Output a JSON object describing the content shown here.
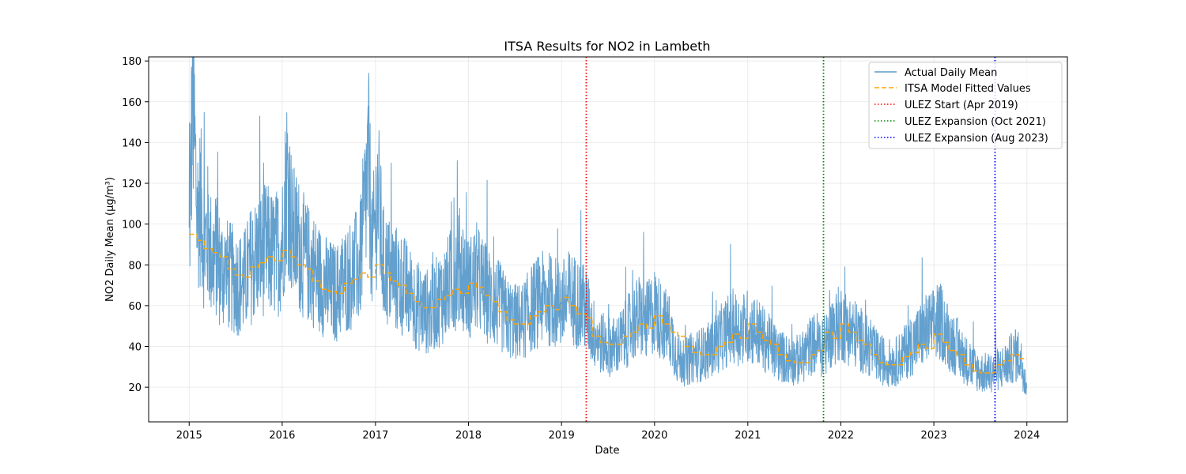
{
  "chart_data": {
    "type": "line",
    "title": "ITSA Results for NO2 in Lambeth",
    "xlabel": "Date",
    "ylabel": "NO2 Daily Mean (µg/m³)",
    "x_range": [
      "2014-07-26",
      "2024-06-08"
    ],
    "ylim": [
      3,
      182
    ],
    "x_ticks": [
      "2015",
      "2016",
      "2017",
      "2018",
      "2019",
      "2020",
      "2021",
      "2022",
      "2023",
      "2024"
    ],
    "y_ticks": [
      20,
      40,
      60,
      80,
      100,
      120,
      140,
      160,
      180
    ],
    "grid": true,
    "legend_position": "top-right",
    "series": [
      {
        "name": "Actual Daily Mean",
        "kind": "actual",
        "color": "#5b9bcb",
        "points": [
          [
            "2015-01-01",
            88
          ],
          [
            "2015-01-08",
            128
          ],
          [
            "2015-01-15",
            165
          ],
          [
            "2015-01-22",
            140
          ],
          [
            "2015-02-01",
            105
          ],
          [
            "2015-02-15",
            110
          ],
          [
            "2015-03-01",
            90
          ],
          [
            "2015-03-15",
            95
          ],
          [
            "2015-04-01",
            82
          ],
          [
            "2015-04-15",
            85
          ],
          [
            "2015-05-01",
            78
          ],
          [
            "2015-06-01",
            75
          ],
          [
            "2015-07-01",
            72
          ],
          [
            "2015-08-01",
            70
          ],
          [
            "2015-09-01",
            80
          ],
          [
            "2015-10-01",
            85
          ],
          [
            "2015-11-01",
            88
          ],
          [
            "2015-12-01",
            84
          ],
          [
            "2016-01-01",
            90
          ],
          [
            "2016-01-20",
            125
          ],
          [
            "2016-02-10",
            95
          ],
          [
            "2016-03-01",
            92
          ],
          [
            "2016-04-01",
            82
          ],
          [
            "2016-05-01",
            78
          ],
          [
            "2016-06-01",
            72
          ],
          [
            "2016-07-01",
            68
          ],
          [
            "2016-08-01",
            66
          ],
          [
            "2016-09-01",
            72
          ],
          [
            "2016-10-01",
            76
          ],
          [
            "2016-11-01",
            80
          ],
          [
            "2016-12-05",
            130
          ],
          [
            "2016-12-20",
            85
          ],
          [
            "2017-01-10",
            115
          ],
          [
            "2017-02-01",
            80
          ],
          [
            "2017-03-01",
            75
          ],
          [
            "2017-04-01",
            72
          ],
          [
            "2017-05-01",
            68
          ],
          [
            "2017-06-01",
            62
          ],
          [
            "2017-07-01",
            58
          ],
          [
            "2017-08-01",
            57
          ],
          [
            "2017-09-01",
            62
          ],
          [
            "2017-10-01",
            66
          ],
          [
            "2017-11-01",
            74
          ],
          [
            "2017-12-01",
            80
          ],
          [
            "2018-01-01",
            68
          ],
          [
            "2018-02-01",
            74
          ],
          [
            "2018-03-01",
            68
          ],
          [
            "2018-04-01",
            63
          ],
          [
            "2018-05-01",
            60
          ],
          [
            "2018-06-01",
            54
          ],
          [
            "2018-07-01",
            52
          ],
          [
            "2018-08-01",
            52
          ],
          [
            "2018-09-01",
            58
          ],
          [
            "2018-10-01",
            62
          ],
          [
            "2018-11-01",
            64
          ],
          [
            "2018-12-01",
            62
          ],
          [
            "2019-01-01",
            60
          ],
          [
            "2019-02-01",
            64
          ],
          [
            "2019-03-01",
            62
          ],
          [
            "2019-04-08",
            58
          ],
          [
            "2019-05-01",
            48
          ],
          [
            "2019-06-01",
            42
          ],
          [
            "2019-07-01",
            40
          ],
          [
            "2019-08-01",
            40
          ],
          [
            "2019-09-01",
            44
          ],
          [
            "2019-10-01",
            50
          ],
          [
            "2019-11-01",
            55
          ],
          [
            "2019-12-01",
            52
          ],
          [
            "2020-01-01",
            58
          ],
          [
            "2020-02-01",
            52
          ],
          [
            "2020-03-01",
            48
          ],
          [
            "2020-04-01",
            34
          ],
          [
            "2020-05-01",
            32
          ],
          [
            "2020-06-01",
            35
          ],
          [
            "2020-07-01",
            36
          ],
          [
            "2020-08-01",
            38
          ],
          [
            "2020-09-01",
            42
          ],
          [
            "2020-10-01",
            46
          ],
          [
            "2020-11-01",
            50
          ],
          [
            "2020-12-01",
            48
          ],
          [
            "2021-01-01",
            50
          ],
          [
            "2021-02-01",
            48
          ],
          [
            "2021-03-01",
            44
          ],
          [
            "2021-04-01",
            40
          ],
          [
            "2021-05-01",
            36
          ],
          [
            "2021-06-01",
            34
          ],
          [
            "2021-07-01",
            33
          ],
          [
            "2021-08-01",
            34
          ],
          [
            "2021-09-01",
            40
          ],
          [
            "2021-10-01",
            42
          ],
          [
            "2021-10-25",
            38
          ],
          [
            "2021-12-01",
            48
          ],
          [
            "2022-01-01",
            52
          ],
          [
            "2022-02-01",
            48
          ],
          [
            "2022-03-01",
            46
          ],
          [
            "2022-04-01",
            42
          ],
          [
            "2022-05-01",
            38
          ],
          [
            "2022-06-01",
            34
          ],
          [
            "2022-07-01",
            32
          ],
          [
            "2022-08-01",
            32
          ],
          [
            "2022-09-01",
            36
          ],
          [
            "2022-10-01",
            40
          ],
          [
            "2022-11-01",
            44
          ],
          [
            "2022-12-01",
            48
          ],
          [
            "2023-01-01",
            50
          ],
          [
            "2023-02-01",
            52
          ],
          [
            "2023-03-01",
            44
          ],
          [
            "2023-04-01",
            40
          ],
          [
            "2023-05-01",
            34
          ],
          [
            "2023-06-01",
            30
          ],
          [
            "2023-07-01",
            27
          ],
          [
            "2023-08-01",
            27
          ],
          [
            "2023-08-29",
            28
          ],
          [
            "2023-10-01",
            30
          ],
          [
            "2023-11-01",
            34
          ],
          [
            "2023-12-01",
            36
          ],
          [
            "2023-12-31",
            22
          ]
        ]
      },
      {
        "name": "ITSA Model Fitted Values",
        "kind": "fitted",
        "color": "#ffa500",
        "points": [
          [
            "2015-01-01",
            95
          ],
          [
            "2015-02-01",
            92
          ],
          [
            "2015-03-01",
            88
          ],
          [
            "2015-04-01",
            86
          ],
          [
            "2015-05-01",
            84
          ],
          [
            "2015-06-01",
            78
          ],
          [
            "2015-07-01",
            75
          ],
          [
            "2015-08-01",
            74
          ],
          [
            "2015-09-01",
            79
          ],
          [
            "2015-10-01",
            81
          ],
          [
            "2015-11-01",
            84
          ],
          [
            "2015-12-01",
            82
          ],
          [
            "2016-01-01",
            87
          ],
          [
            "2016-02-01",
            84
          ],
          [
            "2016-03-01",
            80
          ],
          [
            "2016-04-01",
            78
          ],
          [
            "2016-05-01",
            72
          ],
          [
            "2016-06-01",
            68
          ],
          [
            "2016-07-01",
            67
          ],
          [
            "2016-08-01",
            66
          ],
          [
            "2016-09-01",
            71
          ],
          [
            "2016-10-01",
            73
          ],
          [
            "2016-11-01",
            76
          ],
          [
            "2016-12-01",
            74
          ],
          [
            "2017-01-01",
            80
          ],
          [
            "2017-02-01",
            76
          ],
          [
            "2017-03-01",
            72
          ],
          [
            "2017-04-01",
            70
          ],
          [
            "2017-05-01",
            66
          ],
          [
            "2017-06-01",
            62
          ],
          [
            "2017-07-01",
            59
          ],
          [
            "2017-08-01",
            59
          ],
          [
            "2017-09-01",
            63
          ],
          [
            "2017-10-01",
            65
          ],
          [
            "2017-11-01",
            68
          ],
          [
            "2017-12-01",
            66
          ],
          [
            "2018-01-01",
            71
          ],
          [
            "2018-02-01",
            69
          ],
          [
            "2018-03-01",
            65
          ],
          [
            "2018-04-01",
            62
          ],
          [
            "2018-05-01",
            57
          ],
          [
            "2018-06-01",
            53
          ],
          [
            "2018-07-01",
            51
          ],
          [
            "2018-08-01",
            51
          ],
          [
            "2018-09-01",
            55
          ],
          [
            "2018-10-01",
            57
          ],
          [
            "2018-11-01",
            60
          ],
          [
            "2018-12-01",
            58
          ],
          [
            "2019-01-01",
            64
          ],
          [
            "2019-02-01",
            60
          ],
          [
            "2019-03-01",
            56
          ],
          [
            "2019-04-08",
            54
          ],
          [
            "2019-05-01",
            45
          ],
          [
            "2019-06-01",
            42
          ],
          [
            "2019-07-01",
            41
          ],
          [
            "2019-08-01",
            41
          ],
          [
            "2019-09-01",
            45
          ],
          [
            "2019-10-01",
            47
          ],
          [
            "2019-11-01",
            51
          ],
          [
            "2019-12-01",
            49
          ],
          [
            "2020-01-01",
            55
          ],
          [
            "2020-02-01",
            51
          ],
          [
            "2020-03-01",
            47
          ],
          [
            "2020-04-01",
            45
          ],
          [
            "2020-05-01",
            40
          ],
          [
            "2020-06-01",
            37
          ],
          [
            "2020-07-01",
            36
          ],
          [
            "2020-08-01",
            36
          ],
          [
            "2020-09-01",
            40
          ],
          [
            "2020-10-01",
            42
          ],
          [
            "2020-11-01",
            46
          ],
          [
            "2020-12-01",
            44
          ],
          [
            "2021-01-01",
            51
          ],
          [
            "2021-02-01",
            47
          ],
          [
            "2021-03-01",
            43
          ],
          [
            "2021-04-01",
            41
          ],
          [
            "2021-05-01",
            36
          ],
          [
            "2021-06-01",
            33
          ],
          [
            "2021-07-01",
            32
          ],
          [
            "2021-08-01",
            32
          ],
          [
            "2021-09-01",
            36
          ],
          [
            "2021-10-01",
            38
          ],
          [
            "2021-10-25",
            40
          ],
          [
            "2021-11-01",
            47
          ],
          [
            "2021-12-01",
            44
          ],
          [
            "2022-01-01",
            51
          ],
          [
            "2022-02-01",
            47
          ],
          [
            "2022-03-01",
            43
          ],
          [
            "2022-04-01",
            41
          ],
          [
            "2022-05-01",
            36
          ],
          [
            "2022-06-01",
            32
          ],
          [
            "2022-07-01",
            31
          ],
          [
            "2022-08-01",
            31
          ],
          [
            "2022-09-01",
            35
          ],
          [
            "2022-10-01",
            37
          ],
          [
            "2022-11-01",
            41
          ],
          [
            "2022-12-01",
            39
          ],
          [
            "2023-01-01",
            46
          ],
          [
            "2023-02-01",
            42
          ],
          [
            "2023-03-01",
            38
          ],
          [
            "2023-04-01",
            36
          ],
          [
            "2023-05-01",
            31
          ],
          [
            "2023-06-01",
            28
          ],
          [
            "2023-07-01",
            27
          ],
          [
            "2023-08-01",
            27
          ],
          [
            "2023-08-29",
            31
          ],
          [
            "2023-10-01",
            33
          ],
          [
            "2023-11-01",
            36
          ],
          [
            "2023-12-01",
            34
          ],
          [
            "2023-12-31",
            34
          ]
        ]
      }
    ],
    "vertical_lines": [
      {
        "name": "ULEZ Start (Apr 2019)",
        "date": "2019-04-08",
        "color": "#ff0000"
      },
      {
        "name": "ULEZ Expansion (Oct 2021)",
        "date": "2021-10-25",
        "color": "#008000"
      },
      {
        "name": "ULEZ Expansion (Aug 2023)",
        "date": "2023-08-29",
        "color": "#0000ff"
      }
    ]
  }
}
